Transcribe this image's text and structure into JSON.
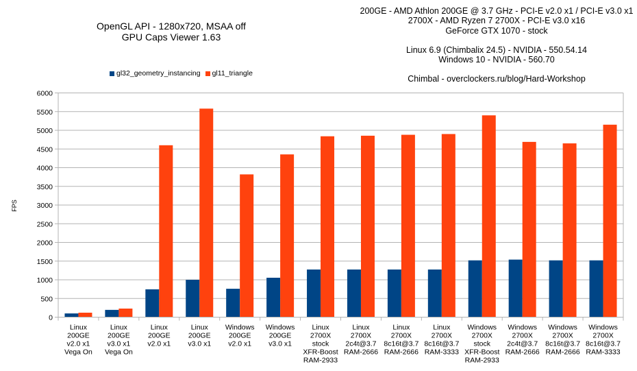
{
  "chart_data": {
    "type": "bar",
    "title": [
      "OpenGL API - 1280x720, MSAA off",
      "GPU Caps Viewer 1.63"
    ],
    "info_lines": [
      "200GE - AMD Athlon 200GE @ 3.7 GHz - PCI-E v2.0 x1 / PCI-E v3.0 x1",
      "2700X - AMD Ryzen 7 2700X - PCI-E v3.0 x16",
      "GeForce GTX 1070 - stock",
      "",
      "Linux 6.9 (Chimbalix 24.5) - NVIDIA - 550.54.14",
      "Windows 10 - NVIDIA - 560.70",
      "",
      "Chimbal - overclockers.ru/blog/Hard-Workshop"
    ],
    "xlabel": "",
    "ylabel": "FPS",
    "ylim": [
      0,
      6000
    ],
    "ytick_step": 500,
    "yticks": [
      "0",
      "500",
      "1000",
      "1500",
      "2000",
      "2500",
      "3000",
      "3500",
      "4000",
      "4500",
      "5000",
      "5500",
      "6000"
    ],
    "grid": true,
    "legend_position": "top-left",
    "categories": [
      [
        "Linux",
        "200GE",
        "v2.0 x1",
        "Vega On"
      ],
      [
        "Linux",
        "200GE",
        "v3.0 x1",
        "Vega On"
      ],
      [
        "Linux",
        "200GE",
        "v2.0 x1"
      ],
      [
        "Linux",
        "200GE",
        "v3.0 x1"
      ],
      [
        "Windows",
        "200GE",
        "v2.0 x1"
      ],
      [
        "Windows",
        "200GE",
        "v3.0 x1"
      ],
      [
        "Linux",
        "2700X",
        "stock",
        "XFR-Boost",
        "RAM-2933"
      ],
      [
        "Linux",
        "2700X",
        "2c4t@3.7",
        "RAM-2666"
      ],
      [
        "Linux",
        "2700X",
        "8c16t@3.7",
        "RAM-2666"
      ],
      [
        "Linux",
        "2700X",
        "8c16t@3.7",
        "RAM-3333"
      ],
      [
        "Windows",
        "2700X",
        "stock",
        "XFR-Boost",
        "RAM-2933"
      ],
      [
        "Windows",
        "2700X",
        "2c4t@3.7",
        "RAM-2666"
      ],
      [
        "Windows",
        "2700X",
        "8c16t@3.7",
        "RAM-2666"
      ],
      [
        "Windows",
        "2700X",
        "8c16t@3.7",
        "RAM-3333"
      ]
    ],
    "series": [
      {
        "name": "gl32_geometry_instancing",
        "color": "#004586",
        "values": [
          100,
          195,
          745,
          1000,
          760,
          1055,
          1275,
          1275,
          1275,
          1275,
          1520,
          1540,
          1520,
          1520
        ]
      },
      {
        "name": "gl11_triangle",
        "color": "#ff420e",
        "values": [
          120,
          230,
          4600,
          5580,
          3820,
          4355,
          4840,
          4855,
          4880,
          4900,
          5400,
          4690,
          4650,
          5150
        ]
      }
    ]
  },
  "colors": {
    "grid": "#b3b3b3",
    "axis": "#b3b3b3"
  }
}
